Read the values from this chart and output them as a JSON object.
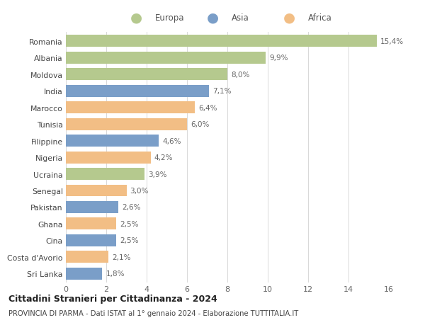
{
  "countries": [
    "Romania",
    "Albania",
    "Moldova",
    "India",
    "Marocco",
    "Tunisia",
    "Filippine",
    "Nigeria",
    "Ucraina",
    "Senegal",
    "Pakistan",
    "Ghana",
    "Cina",
    "Costa d'Avorio",
    "Sri Lanka"
  ],
  "values": [
    15.4,
    9.9,
    8.0,
    7.1,
    6.4,
    6.0,
    4.6,
    4.2,
    3.9,
    3.0,
    2.6,
    2.5,
    2.5,
    2.1,
    1.8
  ],
  "labels": [
    "15,4%",
    "9,9%",
    "8,0%",
    "7,1%",
    "6,4%",
    "6,0%",
    "4,6%",
    "4,2%",
    "3,9%",
    "3,0%",
    "2,6%",
    "2,5%",
    "2,5%",
    "2,1%",
    "1,8%"
  ],
  "regions": [
    "Europa",
    "Europa",
    "Europa",
    "Asia",
    "Africa",
    "Africa",
    "Asia",
    "Africa",
    "Europa",
    "Africa",
    "Asia",
    "Africa",
    "Asia",
    "Africa",
    "Asia"
  ],
  "colors": {
    "Europa": "#b5c98e",
    "Asia": "#7a9ec8",
    "Africa": "#f2be85"
  },
  "title": "Cittadini Stranieri per Cittadinanza - 2024",
  "subtitle": "PROVINCIA DI PARMA - Dati ISTAT al 1° gennaio 2024 - Elaborazione TUTTITALIA.IT",
  "xlim": [
    0,
    16
  ],
  "xticks": [
    0,
    2,
    4,
    6,
    8,
    10,
    12,
    14,
    16
  ],
  "background_color": "#ffffff",
  "grid_color": "#d8d8d8",
  "bar_height": 0.72
}
